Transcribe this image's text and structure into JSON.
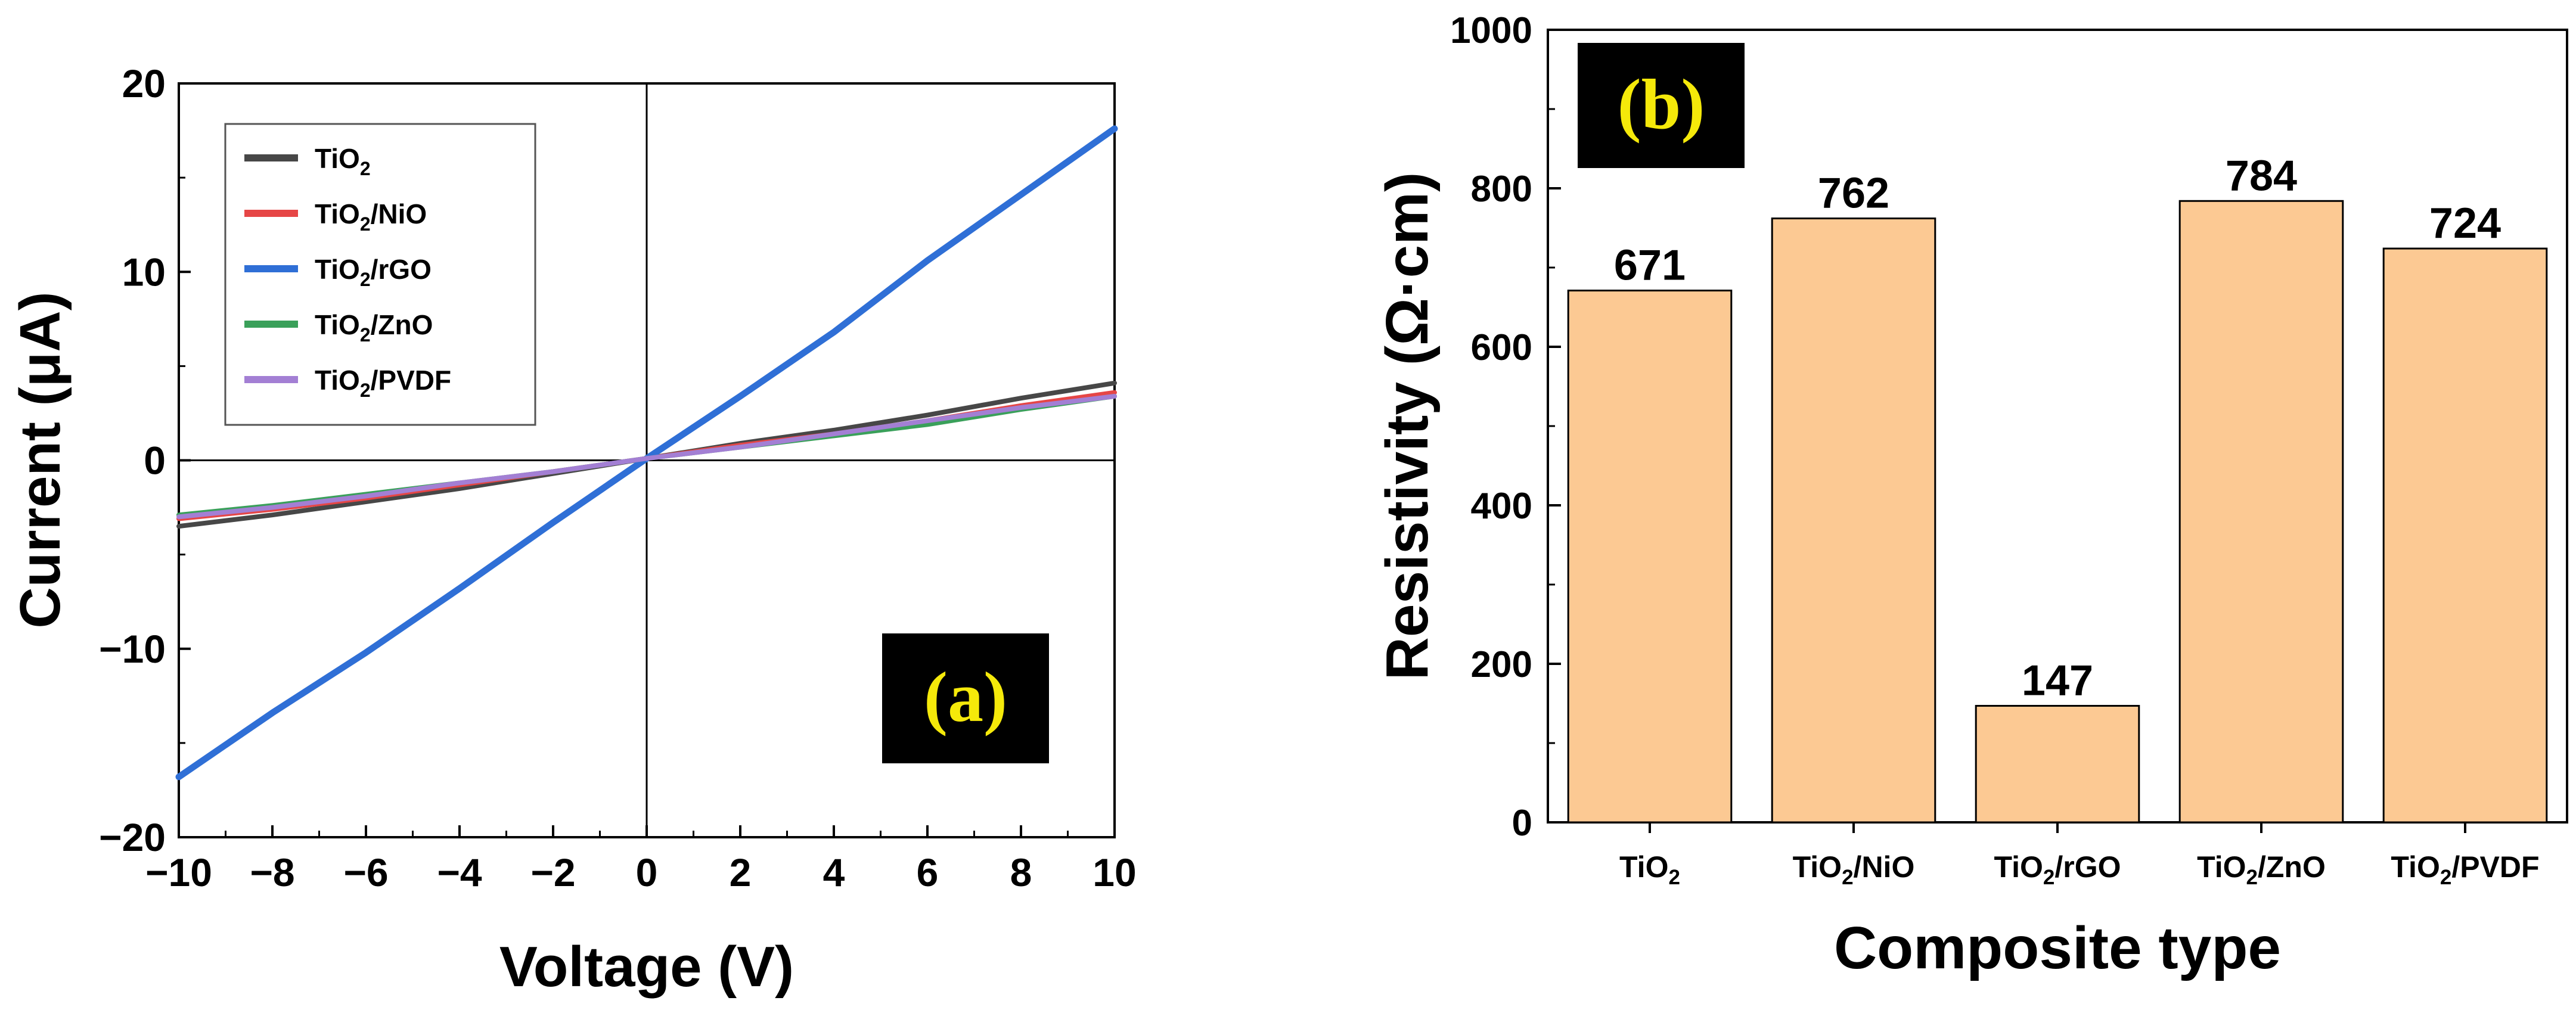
{
  "colors": {
    "tio2": "#474747",
    "tio2_nio": "#e64646",
    "tio2_rgo": "#2f6fd6",
    "tio2_zno": "#3aa05a",
    "tio2_pvdf": "#a37fd4",
    "bar_fill": "#fcc993",
    "panel_label_bg": "#000000",
    "panel_label_text": "#f5e90a"
  },
  "chart_data": [
    {
      "type": "line",
      "panel_label": "(a)",
      "xlabel": "Voltage (V)",
      "ylabel": "Current (μA)",
      "xlim": [
        -10,
        10
      ],
      "ylim": [
        -20,
        20
      ],
      "xticks": [
        "−10",
        "−8",
        "−6",
        "−4",
        "−2",
        "0",
        "2",
        "4",
        "6",
        "8",
        "10"
      ],
      "yticks": [
        "−20",
        "−10",
        "0",
        "10",
        "20"
      ],
      "legend_position": "top-left",
      "x": [
        -10,
        -8,
        -6,
        -4,
        -2,
        0,
        2,
        4,
        6,
        8,
        10
      ],
      "series": [
        {
          "name": "TiO2",
          "legend_base": "TiO",
          "legend_sub": "2",
          "legend_suffix": "",
          "color_key": "tio2",
          "values": [
            -3.5,
            -2.9,
            -2.2,
            -1.5,
            -0.7,
            0.1,
            0.9,
            1.6,
            2.4,
            3.3,
            4.1
          ]
        },
        {
          "name": "TiO2/NiO",
          "legend_base": "TiO",
          "legend_sub": "2",
          "legend_suffix": "/NiO",
          "color_key": "tio2_nio",
          "values": [
            -3.1,
            -2.6,
            -2.0,
            -1.3,
            -0.6,
            0.1,
            0.8,
            1.4,
            2.1,
            2.9,
            3.6
          ]
        },
        {
          "name": "TiO2/rGO",
          "legend_base": "TiO",
          "legend_sub": "2",
          "legend_suffix": "/rGO",
          "color_key": "tio2_rgo",
          "values": [
            -16.8,
            -13.4,
            -10.2,
            -6.8,
            -3.3,
            0.1,
            3.4,
            6.8,
            10.6,
            14.1,
            17.6
          ]
        },
        {
          "name": "TiO2/ZnO",
          "legend_base": "TiO",
          "legend_sub": "2",
          "legend_suffix": "/ZnO",
          "color_key": "tio2_zno",
          "values": [
            -2.9,
            -2.4,
            -1.8,
            -1.2,
            -0.6,
            0.1,
            0.7,
            1.3,
            1.9,
            2.7,
            3.4
          ]
        },
        {
          "name": "TiO2/PVDF",
          "legend_base": "TiO",
          "legend_sub": "2",
          "legend_suffix": "/PVDF",
          "color_key": "tio2_pvdf",
          "values": [
            -3.0,
            -2.5,
            -1.9,
            -1.2,
            -0.6,
            0.1,
            0.7,
            1.4,
            2.1,
            2.8,
            3.4
          ]
        }
      ]
    },
    {
      "type": "bar",
      "panel_label": "(b)",
      "xlabel": "Composite type",
      "ylabel": "Resistivity (Ω·cm)",
      "ylim": [
        0,
        1000
      ],
      "yticks": [
        "0",
        "200",
        "400",
        "600",
        "800",
        "1000"
      ],
      "categories": [
        {
          "base": "TiO",
          "sub": "2",
          "suffix": ""
        },
        {
          "base": "TiO",
          "sub": "2",
          "suffix": "/NiO"
        },
        {
          "base": "TiO",
          "sub": "2",
          "suffix": "/rGO"
        },
        {
          "base": "TiO",
          "sub": "2",
          "suffix": "/ZnO"
        },
        {
          "base": "TiO",
          "sub": "2",
          "suffix": "/PVDF"
        }
      ],
      "values": [
        671,
        762,
        147,
        784,
        724
      ],
      "value_labels": [
        "671",
        "762",
        "147",
        "784",
        "724"
      ]
    }
  ]
}
